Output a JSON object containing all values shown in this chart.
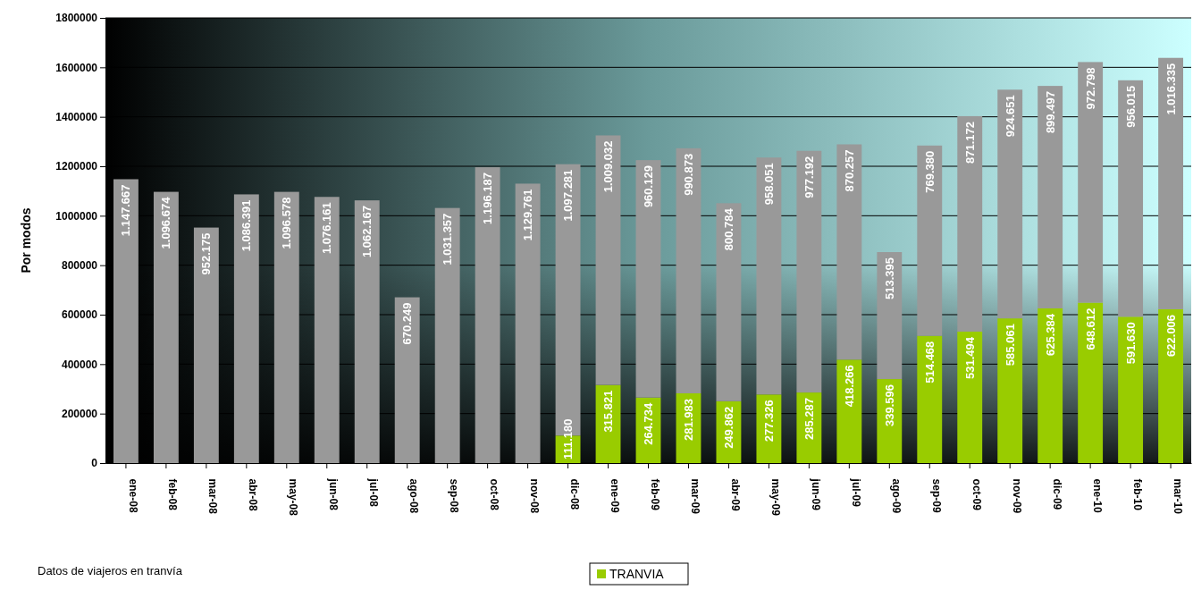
{
  "chart_data": {
    "type": "bar",
    "stacked": true,
    "ylabel": "Por modos",
    "categories": [
      "ene-08",
      "feb-08",
      "mar-08",
      "abr-08",
      "may-08",
      "jun-08",
      "jul-08",
      "ago-08",
      "sep-08",
      "oct-08",
      "nov-08",
      "dic-08",
      "ene-09",
      "feb-09",
      "mar-09",
      "abr-09",
      "may-09",
      "jun-09",
      "jul-09",
      "ago-09",
      "sep-09",
      "oct-09",
      "nov-09",
      "dic-09",
      "ene-10",
      "feb-10",
      "mar-10"
    ],
    "series": [
      {
        "name": "TRANVIA",
        "color": "#99cc00",
        "values": [
          null,
          null,
          null,
          null,
          null,
          null,
          null,
          null,
          null,
          null,
          null,
          111180,
          315821,
          264734,
          281983,
          249862,
          277326,
          285287,
          418266,
          339596,
          514468,
          531494,
          585061,
          625384,
          648612,
          591630,
          622006
        ],
        "value_labels": [
          null,
          null,
          null,
          null,
          null,
          null,
          null,
          null,
          null,
          null,
          null,
          "111.180",
          "315.821",
          "264.734",
          "281.983",
          "249.862",
          "277.326",
          "285.287",
          "418.266",
          "339.596",
          "514.468",
          "531.494",
          "585.061",
          "625.384",
          "648.612",
          "591.630",
          "622.006"
        ]
      },
      {
        "color": "#999999",
        "values": [
          1147667,
          1096674,
          952175,
          1086391,
          1096578,
          1076161,
          1062167,
          670249,
          1031357,
          1196187,
          1129761,
          1097281,
          1009032,
          960129,
          990873,
          800784,
          958051,
          977192,
          870257,
          513395,
          769380,
          871172,
          924651,
          899497,
          972798,
          956015,
          1016335
        ],
        "value_labels": [
          "1.147.667",
          "1.096.674",
          "952.175",
          "1.086.391",
          "1.096.578",
          "1.076.161",
          "1.062.167",
          "670.249",
          "1.031.357",
          "1.196.187",
          "1.129.761",
          "1.097.281",
          "1.009.032",
          "960.129",
          "990.873",
          "800.784",
          "958.051",
          "977.192",
          "870.257",
          "513.395",
          "769.380",
          "871.172",
          "924.651",
          "899.497",
          "972.798",
          "956.015",
          "1.016.335"
        ]
      }
    ],
    "ylim": [
      0,
      1800000
    ],
    "yticks": [
      0,
      200000,
      400000,
      600000,
      800000,
      1000000,
      1200000,
      1400000,
      1600000,
      1800000
    ],
    "grid": "y",
    "legend": "bottom",
    "annotations": [
      "Datos de viajeros en tranvía"
    ]
  }
}
